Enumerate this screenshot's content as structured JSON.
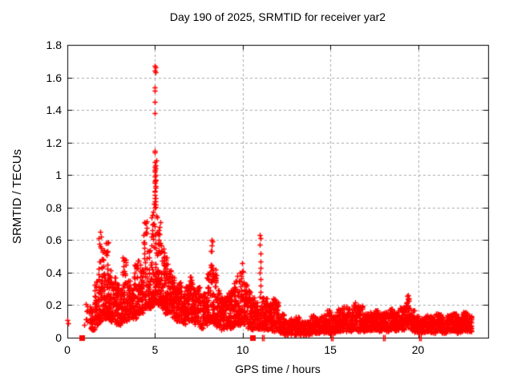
{
  "figure": {
    "background": "#ffffff",
    "text_color": "#000000"
  },
  "chart_data": {
    "type": "scatter",
    "title": "Day 190 of 2025, SRMTID for receiver yar2",
    "xlabel": "GPS time / hours",
    "ylabel": "SRMTID / TECUs",
    "xlim": [
      0,
      24
    ],
    "ylim": [
      0,
      1.8
    ],
    "xtick_values": [
      0,
      5,
      10,
      15,
      20
    ],
    "xtick_labels": [
      "0",
      "5",
      "10",
      "15",
      "20"
    ],
    "ytick_values": [
      0,
      0.2,
      0.4,
      0.6,
      0.8,
      1,
      1.2,
      1.4,
      1.6,
      1.8
    ],
    "ytick_labels": [
      "0",
      "0.2",
      "0.4",
      "0.6",
      "0.8",
      "1",
      "1.2",
      "1.4",
      "1.6",
      "1.8"
    ],
    "grid": true,
    "grid_style": "dashed",
    "legend": "none",
    "marker": "plus",
    "marker_color": "#ff0000",
    "grid_color": "#a8a8a8",
    "axis_color": "#000000",
    "peak": {
      "x": 5.0,
      "y": 1.67
    },
    "seed": 1907,
    "isolated_points": [
      [
        0.02,
        0.11
      ],
      [
        0.05,
        0.09
      ]
    ],
    "notable_points": [
      [
        4.99,
        1.67
      ],
      [
        5.01,
        1.66
      ],
      [
        4.98,
        1.64
      ],
      [
        5.02,
        1.63
      ],
      [
        5.0,
        1.54
      ],
      [
        4.99,
        1.52
      ],
      [
        5.0,
        1.45
      ],
      [
        5.0,
        1.38
      ],
      [
        4.97,
        1.15
      ],
      [
        5.0,
        1.14
      ],
      [
        5.0,
        1.08
      ],
      [
        5.01,
        1.06
      ],
      [
        4.99,
        1.05
      ],
      [
        5.02,
        1.04
      ],
      [
        5.0,
        1.03
      ],
      [
        4.98,
        1.02
      ],
      [
        5.01,
        1.0
      ],
      [
        5.0,
        0.99
      ],
      [
        5.02,
        0.97
      ],
      [
        4.99,
        0.96
      ],
      [
        5.0,
        0.95
      ],
      [
        5.01,
        0.93
      ],
      [
        4.98,
        0.9
      ],
      [
        5.0,
        0.88
      ],
      [
        5.02,
        0.86
      ],
      [
        4.99,
        0.84
      ],
      [
        5.01,
        0.82
      ],
      [
        5.0,
        0.8
      ],
      [
        10.98,
        0.63
      ],
      [
        11.0,
        0.61
      ],
      [
        10.99,
        0.57
      ],
      [
        11.0,
        0.52
      ],
      [
        11.0,
        0.47
      ],
      [
        11.01,
        0.43
      ],
      [
        10.99,
        0.4
      ],
      [
        11.0,
        0.36
      ],
      [
        11.0,
        0.32
      ],
      [
        11.01,
        0.28
      ],
      [
        10.99,
        0.25
      ]
    ],
    "zero_square_markers_x": [
      0.82,
      10.55
    ],
    "zero_tick_markers_x": [
      11.12,
      11.22,
      15.02,
      15.12,
      18.02,
      18.12,
      20.08,
      20.18
    ],
    "band_profile_format": [
      "x_start_hours",
      "x_end_hours",
      "y_min",
      "y_max",
      "n_points"
    ],
    "band_profile": [
      [
        0.95,
        1.3,
        0.08,
        0.21,
        12
      ],
      [
        1.3,
        1.55,
        0.05,
        0.18,
        30
      ],
      [
        1.55,
        1.75,
        0.08,
        0.35,
        35
      ],
      [
        1.75,
        1.95,
        0.1,
        0.66,
        50
      ],
      [
        1.95,
        2.15,
        0.12,
        0.55,
        48
      ],
      [
        2.15,
        2.35,
        0.12,
        0.6,
        48
      ],
      [
        2.35,
        2.55,
        0.1,
        0.42,
        42
      ],
      [
        2.55,
        2.75,
        0.1,
        0.38,
        42
      ],
      [
        2.75,
        2.95,
        0.08,
        0.33,
        40
      ],
      [
        2.95,
        3.15,
        0.08,
        0.3,
        38
      ],
      [
        3.15,
        3.35,
        0.1,
        0.5,
        42
      ],
      [
        3.35,
        3.55,
        0.1,
        0.35,
        38
      ],
      [
        3.55,
        3.75,
        0.12,
        0.3,
        38
      ],
      [
        3.75,
        3.95,
        0.12,
        0.45,
        42
      ],
      [
        3.95,
        4.15,
        0.15,
        0.48,
        42
      ],
      [
        4.15,
        4.35,
        0.15,
        0.42,
        42
      ],
      [
        4.35,
        4.55,
        0.18,
        0.72,
        46
      ],
      [
        4.55,
        4.75,
        0.18,
        0.55,
        46
      ],
      [
        4.75,
        4.95,
        0.2,
        0.78,
        50
      ],
      [
        4.95,
        5.15,
        0.22,
        1.1,
        55
      ],
      [
        5.15,
        5.35,
        0.2,
        0.72,
        50
      ],
      [
        5.35,
        5.55,
        0.18,
        0.55,
        46
      ],
      [
        5.55,
        5.75,
        0.15,
        0.5,
        46
      ],
      [
        5.75,
        5.95,
        0.15,
        0.42,
        42
      ],
      [
        5.95,
        6.15,
        0.12,
        0.38,
        42
      ],
      [
        6.15,
        6.35,
        0.1,
        0.32,
        42
      ],
      [
        6.35,
        6.55,
        0.1,
        0.35,
        42
      ],
      [
        6.55,
        6.75,
        0.08,
        0.28,
        40
      ],
      [
        6.75,
        6.95,
        0.1,
        0.32,
        42
      ],
      [
        6.95,
        7.15,
        0.1,
        0.38,
        42
      ],
      [
        7.15,
        7.35,
        0.08,
        0.3,
        40
      ],
      [
        7.35,
        7.55,
        0.08,
        0.32,
        40
      ],
      [
        7.55,
        7.75,
        0.06,
        0.26,
        40
      ],
      [
        7.75,
        7.95,
        0.08,
        0.28,
        40
      ],
      [
        7.95,
        8.15,
        0.1,
        0.4,
        42
      ],
      [
        8.15,
        8.32,
        0.1,
        0.61,
        42
      ],
      [
        8.32,
        8.5,
        0.08,
        0.42,
        38
      ],
      [
        8.5,
        8.7,
        0.06,
        0.3,
        40
      ],
      [
        8.7,
        8.9,
        0.05,
        0.25,
        40
      ],
      [
        8.9,
        9.1,
        0.05,
        0.25,
        40
      ],
      [
        9.1,
        9.3,
        0.06,
        0.28,
        40
      ],
      [
        9.3,
        9.5,
        0.06,
        0.3,
        40
      ],
      [
        9.5,
        9.7,
        0.08,
        0.35,
        40
      ],
      [
        9.7,
        9.9,
        0.08,
        0.4,
        40
      ],
      [
        9.9,
        10.05,
        0.1,
        0.46,
        36
      ],
      [
        10.05,
        10.25,
        0.08,
        0.33,
        38
      ],
      [
        10.25,
        10.45,
        0.06,
        0.3,
        38
      ],
      [
        10.45,
        10.65,
        0.05,
        0.25,
        36
      ],
      [
        10.65,
        10.85,
        0.05,
        0.22,
        34
      ],
      [
        10.85,
        11.05,
        0.04,
        0.18,
        26
      ],
      [
        11.05,
        11.25,
        0.05,
        0.25,
        32
      ],
      [
        11.25,
        11.45,
        0.05,
        0.24,
        38
      ],
      [
        11.45,
        11.65,
        0.05,
        0.22,
        38
      ],
      [
        11.65,
        11.85,
        0.04,
        0.24,
        38
      ],
      [
        11.85,
        12.05,
        0.04,
        0.22,
        40
      ],
      [
        12.05,
        12.35,
        0.03,
        0.15,
        50
      ],
      [
        12.35,
        12.65,
        0.02,
        0.1,
        50
      ],
      [
        12.65,
        12.95,
        0.02,
        0.12,
        50
      ],
      [
        12.95,
        13.25,
        0.02,
        0.13,
        50
      ],
      [
        13.25,
        13.55,
        0.02,
        0.1,
        50
      ],
      [
        13.55,
        13.85,
        0.02,
        0.1,
        50
      ],
      [
        13.85,
        14.15,
        0.02,
        0.14,
        52
      ],
      [
        14.15,
        14.45,
        0.03,
        0.12,
        52
      ],
      [
        14.45,
        14.75,
        0.03,
        0.14,
        52
      ],
      [
        14.75,
        15.05,
        0.03,
        0.17,
        52
      ],
      [
        15.05,
        15.35,
        0.03,
        0.14,
        52
      ],
      [
        15.35,
        15.65,
        0.04,
        0.18,
        52
      ],
      [
        15.65,
        15.95,
        0.04,
        0.2,
        52
      ],
      [
        15.95,
        16.25,
        0.04,
        0.18,
        54
      ],
      [
        16.25,
        16.55,
        0.05,
        0.22,
        54
      ],
      [
        16.55,
        16.85,
        0.04,
        0.2,
        52
      ],
      [
        16.85,
        17.15,
        0.04,
        0.15,
        52
      ],
      [
        17.15,
        17.45,
        0.04,
        0.16,
        52
      ],
      [
        17.45,
        17.75,
        0.05,
        0.17,
        52
      ],
      [
        17.75,
        18.05,
        0.04,
        0.15,
        52
      ],
      [
        18.05,
        18.35,
        0.04,
        0.16,
        52
      ],
      [
        18.35,
        18.65,
        0.05,
        0.18,
        52
      ],
      [
        18.65,
        18.95,
        0.04,
        0.16,
        52
      ],
      [
        18.95,
        19.25,
        0.05,
        0.19,
        52
      ],
      [
        19.25,
        19.5,
        0.06,
        0.27,
        44
      ],
      [
        19.5,
        19.8,
        0.04,
        0.17,
        50
      ],
      [
        19.8,
        20.1,
        0.03,
        0.14,
        52
      ],
      [
        20.1,
        20.4,
        0.03,
        0.12,
        52
      ],
      [
        20.4,
        20.7,
        0.04,
        0.14,
        52
      ],
      [
        20.7,
        21.0,
        0.03,
        0.13,
        52
      ],
      [
        21.0,
        21.3,
        0.04,
        0.15,
        52
      ],
      [
        21.3,
        21.6,
        0.03,
        0.13,
        52
      ],
      [
        21.6,
        21.9,
        0.04,
        0.14,
        52
      ],
      [
        21.9,
        22.2,
        0.04,
        0.15,
        54
      ],
      [
        22.2,
        22.5,
        0.03,
        0.13,
        54
      ],
      [
        22.5,
        22.8,
        0.04,
        0.16,
        54
      ],
      [
        22.8,
        23.05,
        0.04,
        0.14,
        48
      ]
    ]
  }
}
